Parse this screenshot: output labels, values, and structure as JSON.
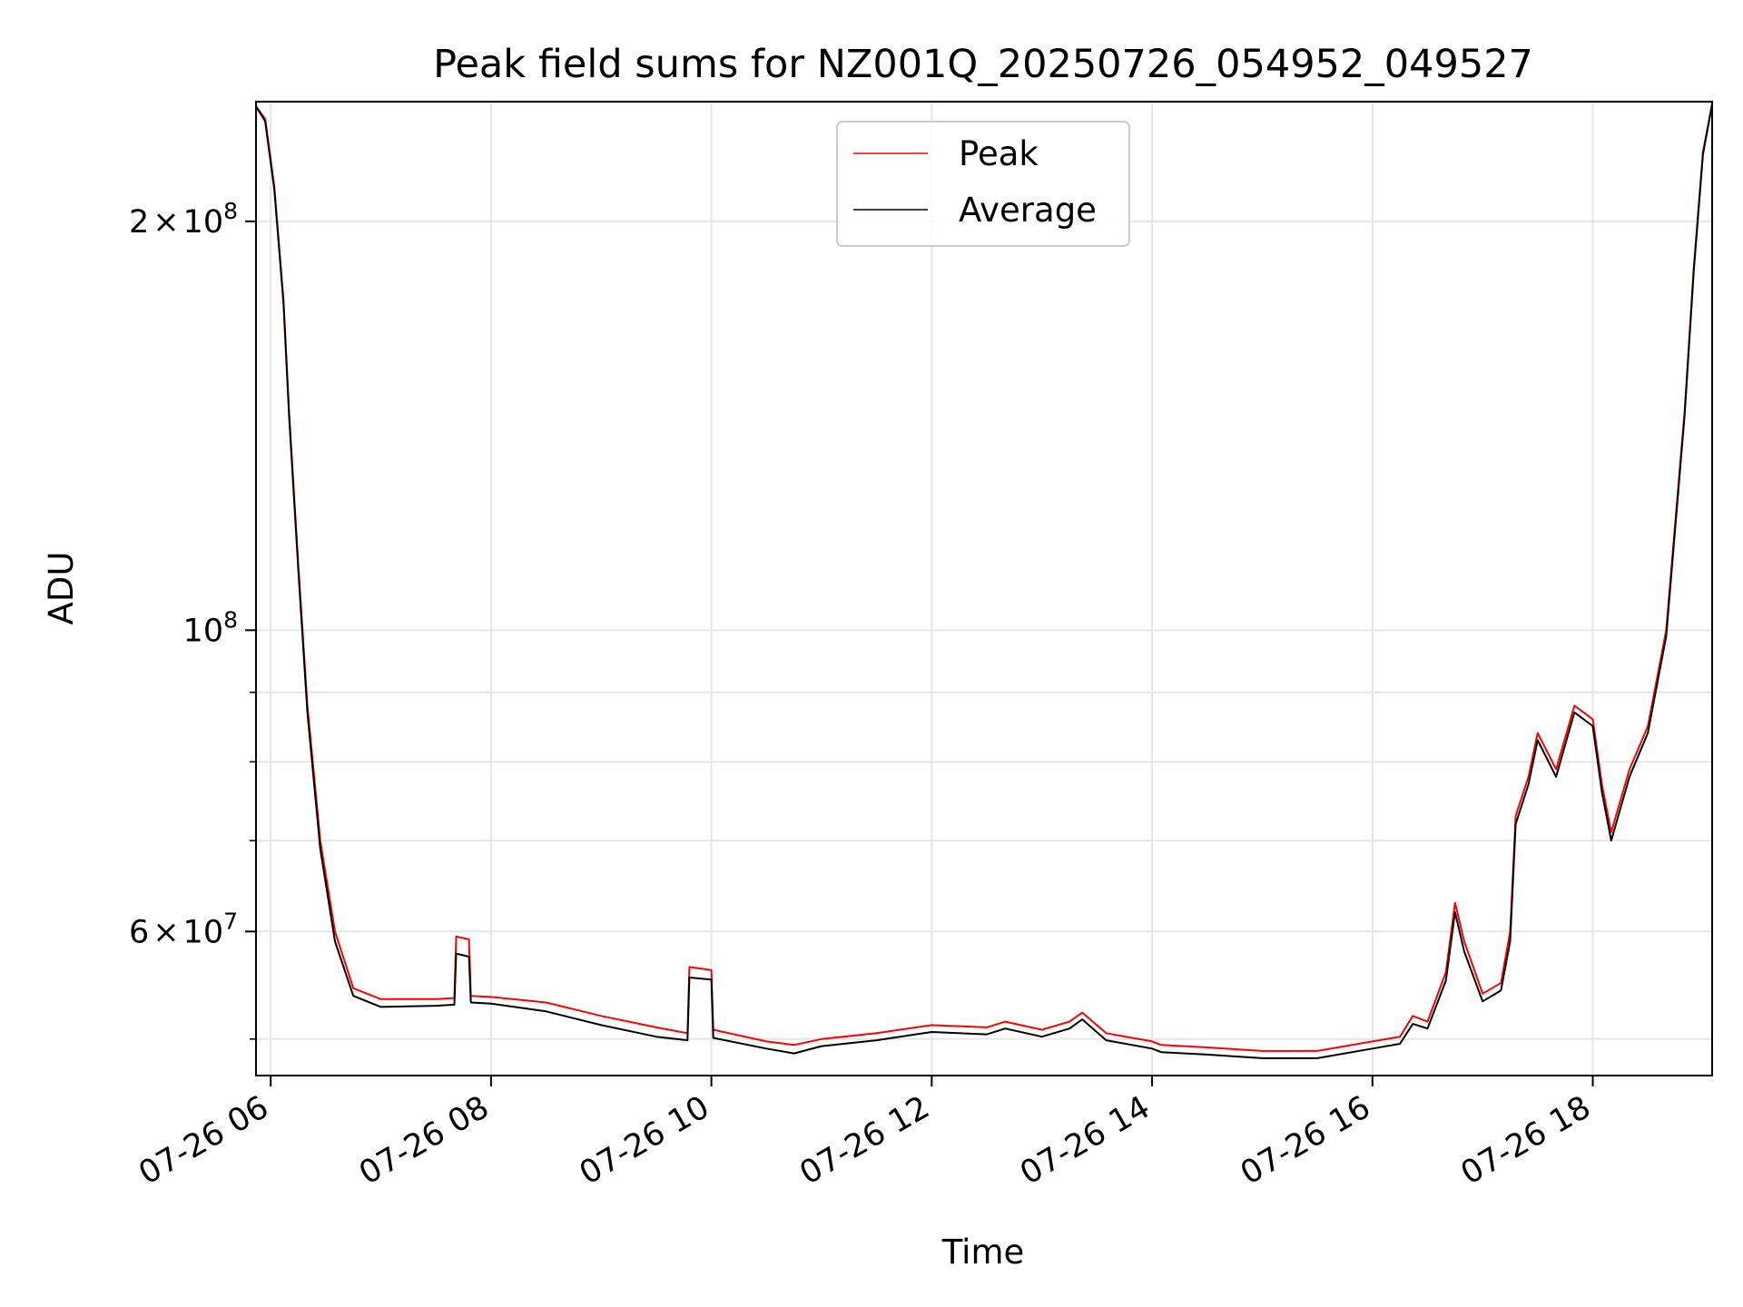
{
  "chart_data": {
    "type": "line",
    "title": "Peak field sums for NZ001Q_20250726_054952_049527",
    "xlabel": "Time",
    "ylabel": "ADU",
    "y_scale": "log",
    "grid": true,
    "legend_position": "top-center",
    "xlim": [
      "2025-07-26 05:52",
      "2025-07-26 19:05"
    ],
    "ylim": [
      47000000,
      245000000
    ],
    "x_ticks": [
      {
        "value": "2025-07-26 06:00",
        "label": "07-26 06"
      },
      {
        "value": "2025-07-26 08:00",
        "label": "07-26 08"
      },
      {
        "value": "2025-07-26 10:00",
        "label": "07-26 10"
      },
      {
        "value": "2025-07-26 12:00",
        "label": "07-26 12"
      },
      {
        "value": "2025-07-26 14:00",
        "label": "07-26 14"
      },
      {
        "value": "2025-07-26 16:00",
        "label": "07-26 16"
      },
      {
        "value": "2025-07-26 18:00",
        "label": "07-26 18"
      }
    ],
    "y_major_ticks": [
      {
        "value": 200000000,
        "mantissa": "2",
        "times": "×",
        "base": "10",
        "exp": "8"
      },
      {
        "value": 100000000,
        "mantissa": "",
        "times": "",
        "base": "10",
        "exp": "8"
      },
      {
        "value": 60000000,
        "mantissa": "6",
        "times": "×",
        "base": "10",
        "exp": "7"
      }
    ],
    "y_minor_ticks": [
      50000000,
      70000000,
      80000000,
      90000000
    ],
    "series": [
      {
        "name": "Peak",
        "color": "#ff0000",
        "points": [
          [
            "2025-07-26 05:52",
            243000000
          ],
          [
            "2025-07-26 05:57",
            238000000
          ],
          [
            "2025-07-26 06:02",
            212000000
          ],
          [
            "2025-07-26 06:07",
            175000000
          ],
          [
            "2025-07-26 06:10",
            145000000
          ],
          [
            "2025-07-26 06:15",
            112000000
          ],
          [
            "2025-07-26 06:20",
            88000000
          ],
          [
            "2025-07-26 06:27",
            70000000
          ],
          [
            "2025-07-26 06:35",
            60000000
          ],
          [
            "2025-07-26 06:45",
            54500000
          ],
          [
            "2025-07-26 07:00",
            53500000
          ],
          [
            "2025-07-26 07:30",
            53500000
          ],
          [
            "2025-07-26 07:40",
            53600000
          ],
          [
            "2025-07-26 07:41",
            59500000
          ],
          [
            "2025-07-26 07:48",
            59200000
          ],
          [
            "2025-07-26 07:49",
            53800000
          ],
          [
            "2025-07-26 08:00",
            53700000
          ],
          [
            "2025-07-26 08:30",
            53200000
          ],
          [
            "2025-07-26 09:00",
            52000000
          ],
          [
            "2025-07-26 09:30",
            51000000
          ],
          [
            "2025-07-26 09:47",
            50500000
          ],
          [
            "2025-07-26 09:48",
            56500000
          ],
          [
            "2025-07-26 10:00",
            56200000
          ],
          [
            "2025-07-26 10:01",
            50800000
          ],
          [
            "2025-07-26 10:30",
            49800000
          ],
          [
            "2025-07-26 10:45",
            49500000
          ],
          [
            "2025-07-26 11:00",
            50000000
          ],
          [
            "2025-07-26 11:30",
            50500000
          ],
          [
            "2025-07-26 12:00",
            51200000
          ],
          [
            "2025-07-26 12:30",
            51000000
          ],
          [
            "2025-07-26 12:40",
            51500000
          ],
          [
            "2025-07-26 13:00",
            50800000
          ],
          [
            "2025-07-26 13:15",
            51500000
          ],
          [
            "2025-07-26 13:22",
            52300000
          ],
          [
            "2025-07-26 13:35",
            50500000
          ],
          [
            "2025-07-26 14:00",
            49800000
          ],
          [
            "2025-07-26 14:05",
            49500000
          ],
          [
            "2025-07-26 14:30",
            49300000
          ],
          [
            "2025-07-26 15:00",
            49000000
          ],
          [
            "2025-07-26 15:30",
            49000000
          ],
          [
            "2025-07-26 16:00",
            49800000
          ],
          [
            "2025-07-26 16:15",
            50200000
          ],
          [
            "2025-07-26 16:22",
            52000000
          ],
          [
            "2025-07-26 16:30",
            51500000
          ],
          [
            "2025-07-26 16:40",
            56000000
          ],
          [
            "2025-07-26 16:45",
            63000000
          ],
          [
            "2025-07-26 16:50",
            59000000
          ],
          [
            "2025-07-26 17:00",
            54000000
          ],
          [
            "2025-07-26 17:10",
            55000000
          ],
          [
            "2025-07-26 17:15",
            60000000
          ],
          [
            "2025-07-26 17:18",
            73000000
          ],
          [
            "2025-07-26 17:25",
            78000000
          ],
          [
            "2025-07-26 17:30",
            84000000
          ],
          [
            "2025-07-26 17:40",
            79000000
          ],
          [
            "2025-07-26 17:50",
            88000000
          ],
          [
            "2025-07-26 18:00",
            86000000
          ],
          [
            "2025-07-26 18:05",
            77000000
          ],
          [
            "2025-07-26 18:10",
            71000000
          ],
          [
            "2025-07-26 18:20",
            79000000
          ],
          [
            "2025-07-26 18:30",
            85000000
          ],
          [
            "2025-07-26 18:40",
            100000000
          ],
          [
            "2025-07-26 18:50",
            145000000
          ],
          [
            "2025-07-26 18:55",
            185000000
          ],
          [
            "2025-07-26 19:00",
            225000000
          ],
          [
            "2025-07-26 19:05",
            244000000
          ]
        ]
      },
      {
        "name": "Average",
        "color": "#000000",
        "points": [
          [
            "2025-07-26 05:52",
            243000000
          ],
          [
            "2025-07-26 05:57",
            237000000
          ],
          [
            "2025-07-26 06:02",
            211000000
          ],
          [
            "2025-07-26 06:07",
            174000000
          ],
          [
            "2025-07-26 06:10",
            144000000
          ],
          [
            "2025-07-26 06:15",
            111000000
          ],
          [
            "2025-07-26 06:20",
            87000000
          ],
          [
            "2025-07-26 06:27",
            69000000
          ],
          [
            "2025-07-26 06:35",
            59000000
          ],
          [
            "2025-07-26 06:45",
            53800000
          ],
          [
            "2025-07-26 07:00",
            52800000
          ],
          [
            "2025-07-26 07:30",
            52900000
          ],
          [
            "2025-07-26 07:40",
            53000000
          ],
          [
            "2025-07-26 07:41",
            57800000
          ],
          [
            "2025-07-26 07:48",
            57500000
          ],
          [
            "2025-07-26 07:49",
            53200000
          ],
          [
            "2025-07-26 08:00",
            53100000
          ],
          [
            "2025-07-26 08:30",
            52400000
          ],
          [
            "2025-07-26 09:00",
            51200000
          ],
          [
            "2025-07-26 09:30",
            50200000
          ],
          [
            "2025-07-26 09:47",
            49900000
          ],
          [
            "2025-07-26 09:48",
            55500000
          ],
          [
            "2025-07-26 10:00",
            55300000
          ],
          [
            "2025-07-26 10:01",
            50100000
          ],
          [
            "2025-07-26 10:30",
            49200000
          ],
          [
            "2025-07-26 10:45",
            48800000
          ],
          [
            "2025-07-26 11:00",
            49400000
          ],
          [
            "2025-07-26 11:30",
            49900000
          ],
          [
            "2025-07-26 12:00",
            50600000
          ],
          [
            "2025-07-26 12:30",
            50400000
          ],
          [
            "2025-07-26 12:40",
            50900000
          ],
          [
            "2025-07-26 13:00",
            50200000
          ],
          [
            "2025-07-26 13:15",
            50900000
          ],
          [
            "2025-07-26 13:22",
            51700000
          ],
          [
            "2025-07-26 13:35",
            49900000
          ],
          [
            "2025-07-26 14:00",
            49200000
          ],
          [
            "2025-07-26 14:05",
            48900000
          ],
          [
            "2025-07-26 14:30",
            48700000
          ],
          [
            "2025-07-26 15:00",
            48400000
          ],
          [
            "2025-07-26 15:30",
            48400000
          ],
          [
            "2025-07-26 16:00",
            49200000
          ],
          [
            "2025-07-26 16:15",
            49600000
          ],
          [
            "2025-07-26 16:22",
            51300000
          ],
          [
            "2025-07-26 16:30",
            50900000
          ],
          [
            "2025-07-26 16:40",
            55200000
          ],
          [
            "2025-07-26 16:45",
            62000000
          ],
          [
            "2025-07-26 16:50",
            58000000
          ],
          [
            "2025-07-26 17:00",
            53300000
          ],
          [
            "2025-07-26 17:10",
            54300000
          ],
          [
            "2025-07-26 17:15",
            59000000
          ],
          [
            "2025-07-26 17:18",
            72000000
          ],
          [
            "2025-07-26 17:25",
            77000000
          ],
          [
            "2025-07-26 17:30",
            83000000
          ],
          [
            "2025-07-26 17:40",
            78000000
          ],
          [
            "2025-07-26 17:50",
            87000000
          ],
          [
            "2025-07-26 18:00",
            85000000
          ],
          [
            "2025-07-26 18:05",
            76000000
          ],
          [
            "2025-07-26 18:10",
            70000000
          ],
          [
            "2025-07-26 18:20",
            78000000
          ],
          [
            "2025-07-26 18:30",
            84000000
          ],
          [
            "2025-07-26 18:40",
            99000000
          ],
          [
            "2025-07-26 18:50",
            144000000
          ],
          [
            "2025-07-26 18:55",
            184000000
          ],
          [
            "2025-07-26 19:00",
            224000000
          ],
          [
            "2025-07-26 19:05",
            244000000
          ]
        ]
      }
    ]
  }
}
